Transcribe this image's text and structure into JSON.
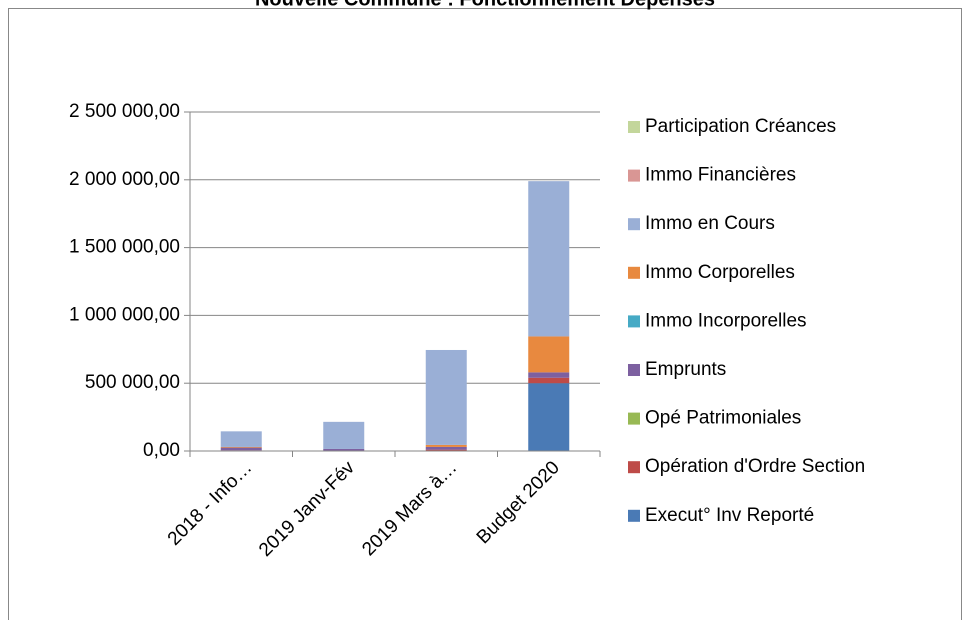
{
  "chart_data": {
    "type": "bar",
    "stacked": true,
    "title": "Nouvelle Commune : Fonctionnement Dépenses",
    "categories": [
      "2018 - Info…",
      "2019 Janv-Fév",
      "2019 Mars à…",
      "Budget 2020"
    ],
    "series": [
      {
        "name": "Execut° Inv Reporté",
        "color": "#4a7ab5",
        "values": [
          0,
          0,
          0,
          500000
        ]
      },
      {
        "name": "Opération d'Ordre Section",
        "color": "#be4b48",
        "values": [
          5000,
          0,
          10000,
          40000
        ]
      },
      {
        "name": "Opé Patrimoniales",
        "color": "#98b954",
        "values": [
          0,
          0,
          0,
          0
        ]
      },
      {
        "name": "Emprunts",
        "color": "#7d60a0",
        "values": [
          20000,
          15000,
          20000,
          40000
        ]
      },
      {
        "name": "Immo Incorporelles",
        "color": "#46aac5",
        "values": [
          0,
          0,
          0,
          0
        ]
      },
      {
        "name": "Immo Corporelles",
        "color": "#e8893f",
        "values": [
          5000,
          0,
          15000,
          265000
        ]
      },
      {
        "name": "Immo en Cours",
        "color": "#9aafd6",
        "values": [
          115000,
          200000,
          700000,
          1145000
        ]
      },
      {
        "name": "Immo Financières",
        "color": "#d99694",
        "values": [
          0,
          0,
          0,
          0
        ]
      },
      {
        "name": "Participation Créances",
        "color": "#c3d69b",
        "values": [
          0,
          0,
          0,
          0
        ]
      }
    ],
    "ylim": [
      0,
      2500000
    ],
    "yticks": [
      {
        "value": 0,
        "label": "0,00"
      },
      {
        "value": 500000,
        "label": "500 000,00"
      },
      {
        "value": 1000000,
        "label": "1 000 000,00"
      },
      {
        "value": 1500000,
        "label": "1 500 000,00"
      },
      {
        "value": 2000000,
        "label": "2 000 000,00"
      },
      {
        "value": 2500000,
        "label": "2 500 000,00"
      }
    ],
    "grid": true,
    "legend": "right"
  }
}
